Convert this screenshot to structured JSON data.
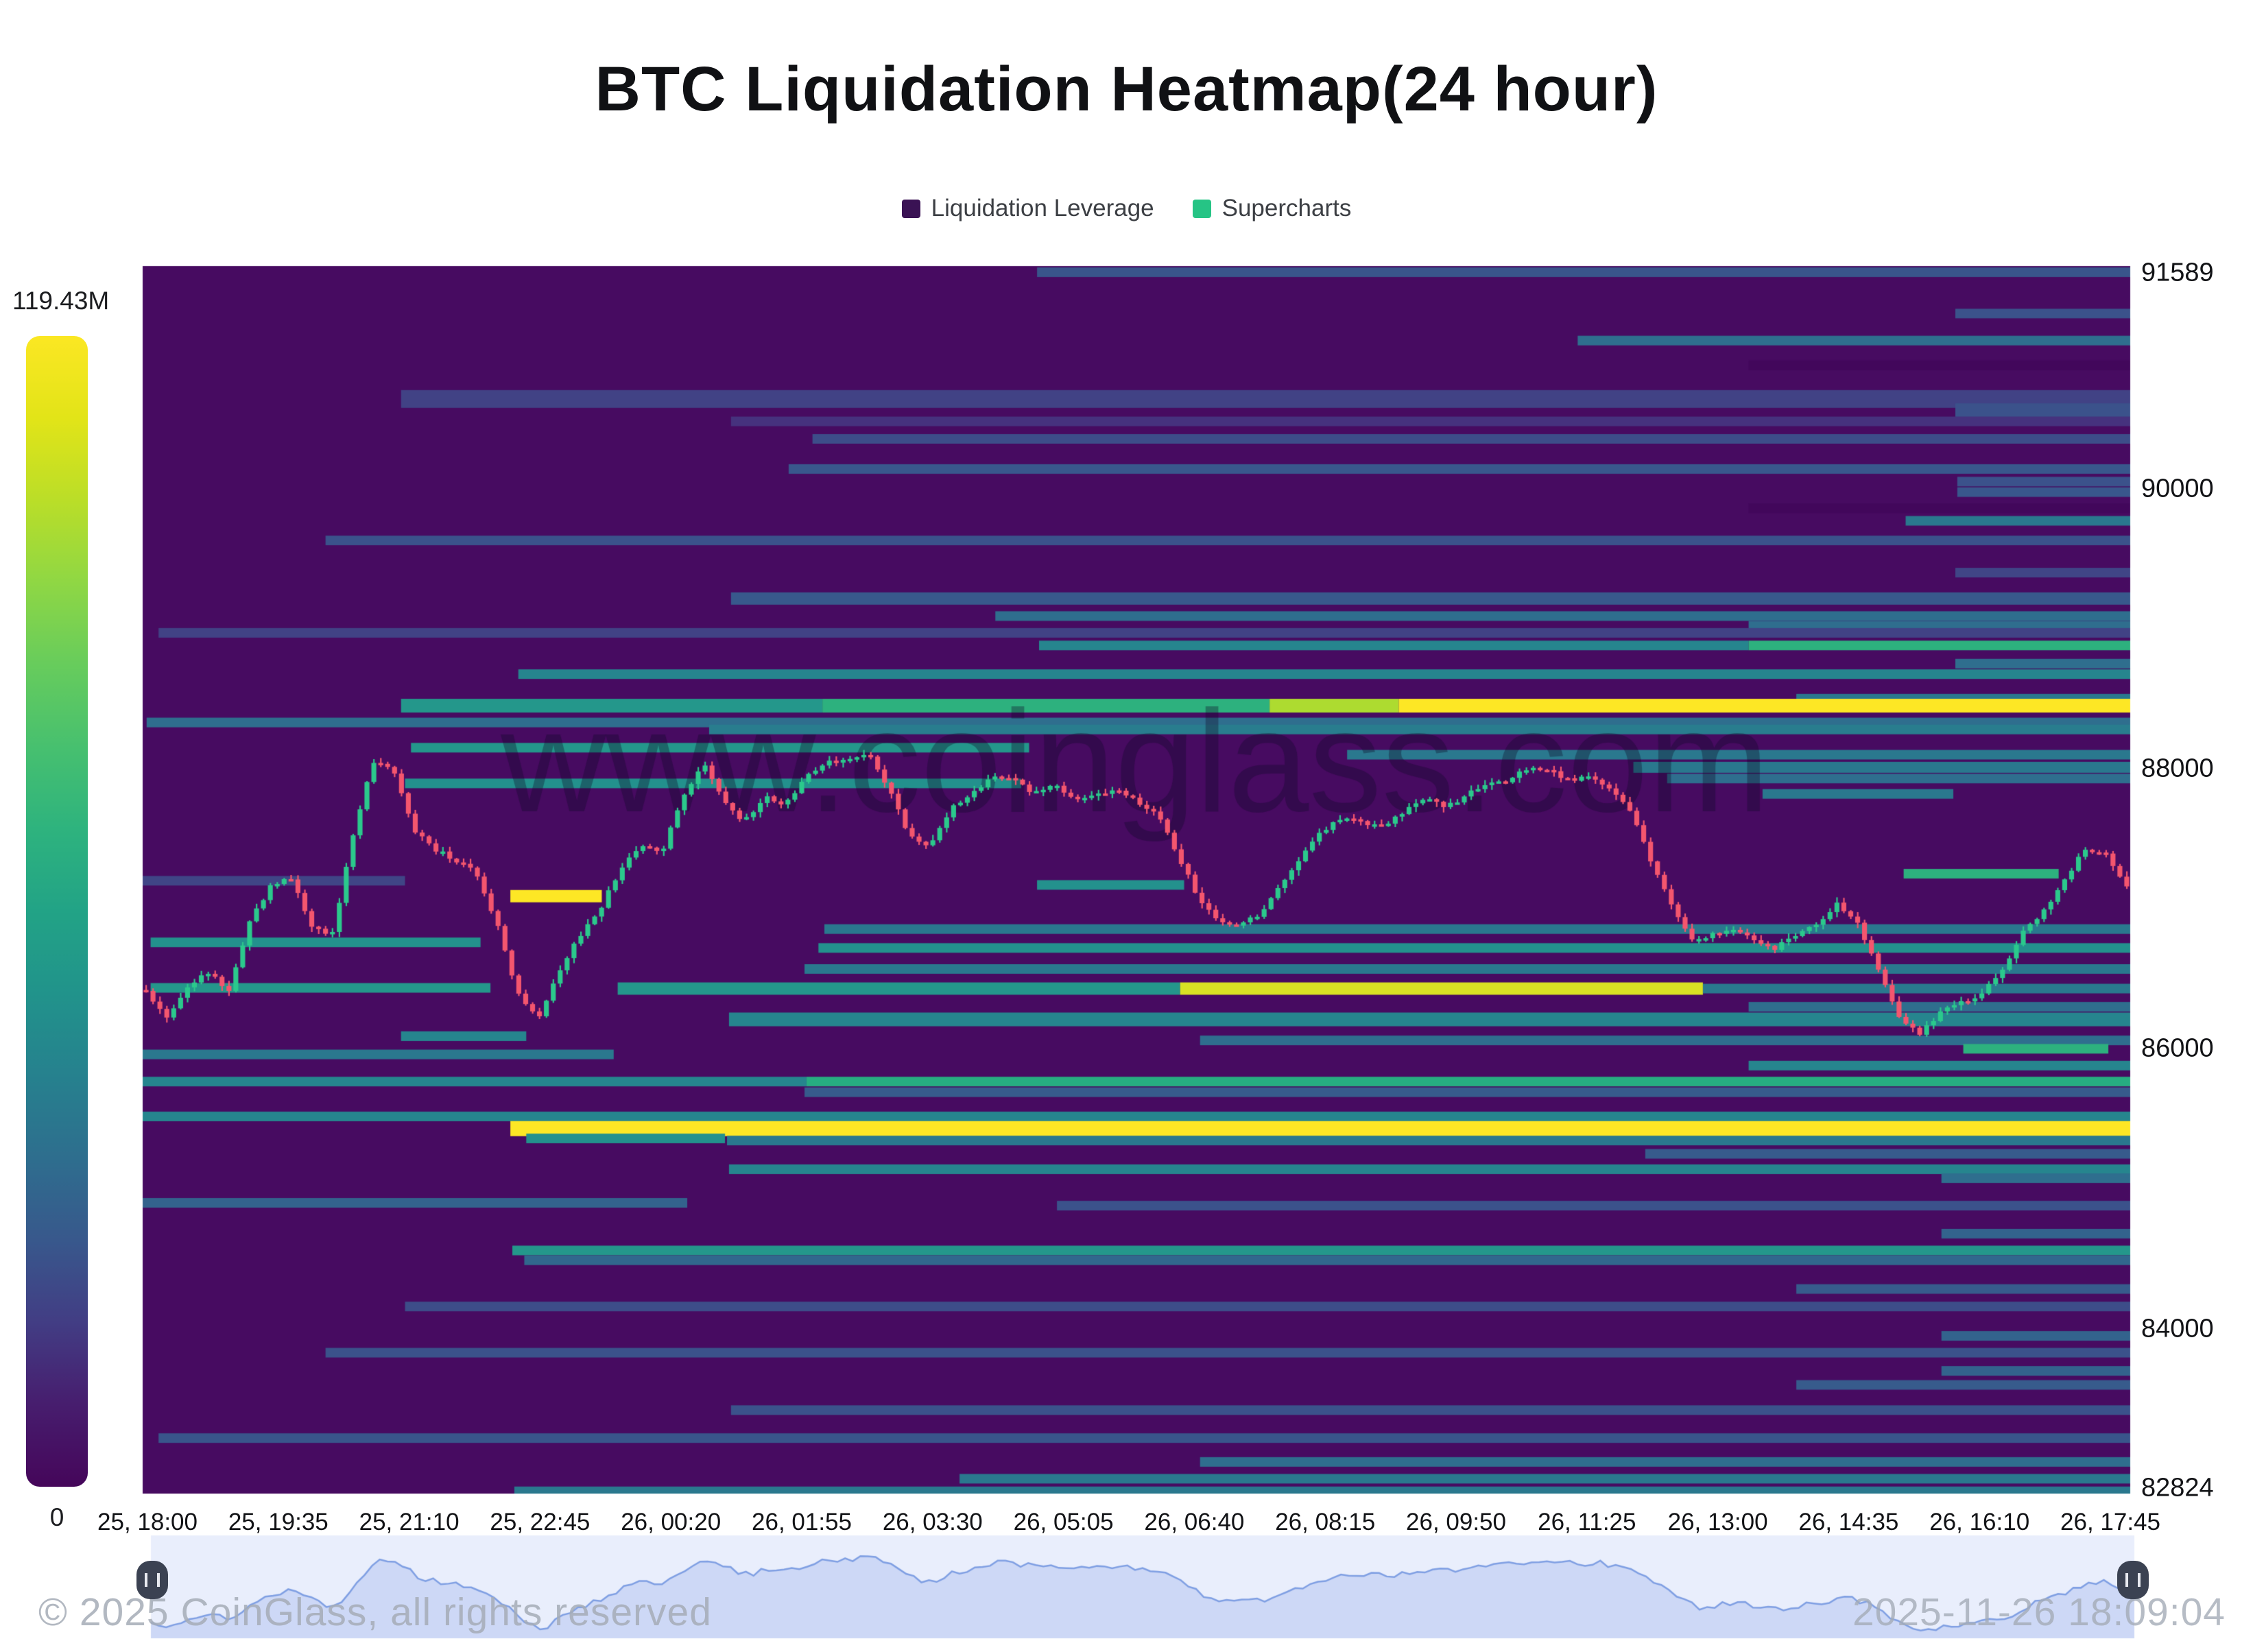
{
  "title": "BTC Liquidation Heatmap(24 hour)",
  "legend": {
    "items": [
      {
        "label": "Liquidation Leverage",
        "color": "#3a1254"
      },
      {
        "label": "Supercharts",
        "color": "#26c485"
      }
    ]
  },
  "colorbar": {
    "max_label": "119.43M",
    "min_label": "0",
    "gradient": [
      "#fbe723",
      "#e2e418",
      "#bade28",
      "#8fd744",
      "#67cc5c",
      "#47c06f",
      "#2eb37e",
      "#22a386",
      "#21938b",
      "#26818e",
      "#2e6e8e",
      "#38588c",
      "#423d84",
      "#471d6e",
      "#45065a"
    ]
  },
  "watermark": "www.coinglass.com",
  "footer": {
    "copyright": "© 2025 CoinGlass, all rights reserved",
    "timestamp": "2025-11-26 18:09:04"
  },
  "chart_data": {
    "type": "heatmap",
    "subtype": "liquidation-heatmap-with-candlesticks",
    "y_axis": {
      "min": 82824,
      "max": 91589,
      "ticks": [
        {
          "label": "91589",
          "price": 91589
        },
        {
          "label": "90000",
          "price": 90000
        },
        {
          "label": "88000",
          "price": 88000
        },
        {
          "label": "86000",
          "price": 86000
        },
        {
          "label": "84000",
          "price": 84000
        },
        {
          "label": "82824",
          "price": 82824
        }
      ]
    },
    "x_axis": {
      "labels": [
        "25, 18:00",
        "25, 19:35",
        "25, 21:10",
        "25, 22:45",
        "26, 00:20",
        "26, 01:55",
        "26, 03:30",
        "26, 05:05",
        "26, 06:40",
        "26, 08:15",
        "26, 09:50",
        "26, 11:25",
        "26, 13:00",
        "26, 14:35",
        "26, 16:10",
        "26, 17:45"
      ]
    },
    "colors": {
      "background": "#470b61",
      "candle_up": "#2bc98c",
      "candle_down": "#f4566e",
      "nav_bg": "#e9eefc",
      "nav_line": "#7f9fe3",
      "nav_fill": "rgba(141,167,231,0.30)"
    },
    "viridis_stops": [
      [
        0,
        "#3a0252"
      ],
      [
        0.1,
        "#470b61"
      ],
      [
        0.18,
        "#46327e"
      ],
      [
        0.3,
        "#3b528b"
      ],
      [
        0.4,
        "#33638d"
      ],
      [
        0.5,
        "#2a788e"
      ],
      [
        0.6,
        "#23918d"
      ],
      [
        0.7,
        "#27ad81"
      ],
      [
        0.78,
        "#3fbc73"
      ],
      [
        0.85,
        "#7ad151"
      ],
      [
        0.92,
        "#c2df23"
      ],
      [
        1,
        "#fde725"
      ]
    ],
    "heat_bands": [
      [
        91545,
        0.45,
        1,
        0.32,
        14
      ],
      [
        91250,
        0.912,
        1,
        0.3,
        14
      ],
      [
        91057,
        0.722,
        1,
        0.45,
        14
      ],
      [
        90880,
        0.808,
        1,
        0.06,
        14
      ],
      [
        90640,
        0.13,
        1,
        0.24,
        26
      ],
      [
        90560,
        0.912,
        1,
        0.3,
        20
      ],
      [
        90480,
        0.296,
        1,
        0.18,
        14
      ],
      [
        90355,
        0.337,
        1,
        0.28,
        14
      ],
      [
        90140,
        0.325,
        1,
        0.33,
        14
      ],
      [
        90050,
        0.913,
        1,
        0.3,
        14
      ],
      [
        89975,
        0.913,
        1,
        0.33,
        14
      ],
      [
        89860,
        0.808,
        1,
        0.06,
        14
      ],
      [
        89770,
        0.887,
        1,
        0.5,
        14
      ],
      [
        89630,
        0.092,
        1,
        0.3,
        14
      ],
      [
        89400,
        0.912,
        1,
        0.25,
        14
      ],
      [
        89215,
        0.296,
        1,
        0.34,
        18
      ],
      [
        89090,
        0.429,
        1,
        0.45,
        14
      ],
      [
        89020,
        0.808,
        1,
        0.45,
        14
      ],
      [
        88970,
        0.008,
        1,
        0.24,
        14
      ],
      [
        88880,
        0.451,
        0.808,
        0.55,
        14
      ],
      [
        88880,
        0.808,
        1,
        0.72,
        14
      ],
      [
        88750,
        0.912,
        1,
        0.45,
        14
      ],
      [
        88675,
        0.189,
        1,
        0.55,
        14
      ],
      [
        88500,
        0.832,
        1,
        0.5,
        14
      ],
      [
        88450,
        0.13,
        0.342,
        0.62,
        20
      ],
      [
        88450,
        0.342,
        0.567,
        0.72,
        20
      ],
      [
        88450,
        0.567,
        0.632,
        0.9,
        20
      ],
      [
        88450,
        0.632,
        1,
        1,
        20
      ],
      [
        88330,
        0.002,
        1,
        0.45,
        14
      ],
      [
        88280,
        0.285,
        1,
        0.52,
        14
      ],
      [
        88150,
        0.135,
        0.446,
        0.62,
        14
      ],
      [
        88100,
        0.606,
        1,
        0.5,
        14
      ],
      [
        88010,
        0.75,
        1,
        0.5,
        16
      ],
      [
        87930,
        0.767,
        1,
        0.45,
        14
      ],
      [
        87895,
        0.132,
        0.442,
        0.6,
        14
      ],
      [
        87820,
        0.815,
        0.911,
        0.5,
        14
      ],
      [
        87250,
        0.886,
        0.964,
        0.72,
        14
      ],
      [
        87200,
        0,
        0.132,
        0.25,
        14
      ],
      [
        87170,
        0.45,
        0.524,
        0.6,
        14
      ],
      [
        87090,
        0.185,
        0.231,
        1,
        18
      ],
      [
        86855,
        0.343,
        1,
        0.5,
        14
      ],
      [
        86760,
        0.004,
        0.17,
        0.6,
        14
      ],
      [
        86720,
        0.34,
        1,
        0.6,
        14
      ],
      [
        86570,
        0.333,
        1,
        0.5,
        14
      ],
      [
        86435,
        0.004,
        0.175,
        0.62,
        14
      ],
      [
        86430,
        0.239,
        0.522,
        0.62,
        18
      ],
      [
        86430,
        0.522,
        0.785,
        0.95,
        18
      ],
      [
        86430,
        0.785,
        1,
        0.5,
        14
      ],
      [
        86300,
        0.808,
        1,
        0.45,
        14
      ],
      [
        86210,
        0.295,
        1,
        0.55,
        20
      ],
      [
        86090,
        0.13,
        0.193,
        0.55,
        14
      ],
      [
        86060,
        0.532,
        1,
        0.45,
        14
      ],
      [
        86000,
        0.916,
        0.989,
        0.72,
        14
      ],
      [
        85960,
        0,
        0.237,
        0.5,
        14
      ],
      [
        85880,
        0.808,
        1,
        0.55,
        14
      ],
      [
        85766,
        0,
        0.334,
        0.55,
        14
      ],
      [
        85766,
        0.334,
        1,
        0.7,
        14
      ],
      [
        85690,
        0.333,
        1,
        0.35,
        14
      ],
      [
        85517,
        0,
        1,
        0.55,
        14
      ],
      [
        85430,
        0.185,
        1,
        1,
        22
      ],
      [
        85360,
        0.193,
        0.293,
        0.6,
        14
      ],
      [
        85345,
        0.294,
        1,
        0.5,
        14
      ],
      [
        85250,
        0.756,
        1,
        0.35,
        14
      ],
      [
        85140,
        0.295,
        1,
        0.55,
        14
      ],
      [
        85076,
        0.905,
        1,
        0.45,
        14
      ],
      [
        84900,
        0,
        0.274,
        0.4,
        14
      ],
      [
        84880,
        0.46,
        1,
        0.3,
        14
      ],
      [
        84680,
        0.905,
        1,
        0.4,
        14
      ],
      [
        84560,
        0.186,
        1,
        0.62,
        14
      ],
      [
        84490,
        0.192,
        1,
        0.42,
        14
      ],
      [
        84285,
        0.832,
        1,
        0.35,
        14
      ],
      [
        84160,
        0.132,
        1,
        0.28,
        14
      ],
      [
        83950,
        0.905,
        1,
        0.4,
        14
      ],
      [
        83830,
        0.092,
        1,
        0.3,
        14
      ],
      [
        83700,
        0.905,
        1,
        0.4,
        14
      ],
      [
        83600,
        0.832,
        1,
        0.35,
        14
      ],
      [
        83420,
        0.296,
        1,
        0.3,
        14
      ],
      [
        83220,
        0.008,
        1,
        0.32,
        14
      ],
      [
        83050,
        0.532,
        1,
        0.45,
        14
      ],
      [
        82930,
        0.411,
        1,
        0.5,
        14
      ],
      [
        82840,
        0.187,
        1,
        0.5,
        14
      ]
    ],
    "price_path": {
      "description": "5-min BTC candles 25,18:00 -> 26,17:45; close anchors sampled every ~15min",
      "closes": [
        86420,
        86220,
        86450,
        86550,
        86400,
        86900,
        87150,
        87230,
        86880,
        86800,
        87500,
        88060,
        87980,
        87550,
        87420,
        87350,
        87250,
        86900,
        86400,
        86200,
        86550,
        86800,
        87000,
        87280,
        87450,
        87400,
        87800,
        88040,
        87780,
        87620,
        87800,
        87740,
        87950,
        88040,
        88060,
        88120,
        87860,
        87520,
        87450,
        87720,
        87820,
        87950,
        87920,
        87820,
        87880,
        87780,
        87800,
        87840,
        87770,
        87680,
        87380,
        87080,
        86920,
        86880,
        86960,
        87180,
        87380,
        87560,
        87650,
        87620,
        87580,
        87700,
        87790,
        87720,
        87810,
        87900,
        87920,
        88000,
        87980,
        87920,
        87940,
        87840,
        87680,
        87320,
        87000,
        86760,
        86820,
        86840,
        86780,
        86720,
        86820,
        86900,
        87040,
        86880,
        86550,
        86200,
        86100,
        86280,
        86330,
        86400,
        86560,
        86840,
        86980,
        87200,
        87440,
        87380,
        87150
      ],
      "candle_count": 288
    },
    "max_liquidation_value": "119.43M"
  }
}
